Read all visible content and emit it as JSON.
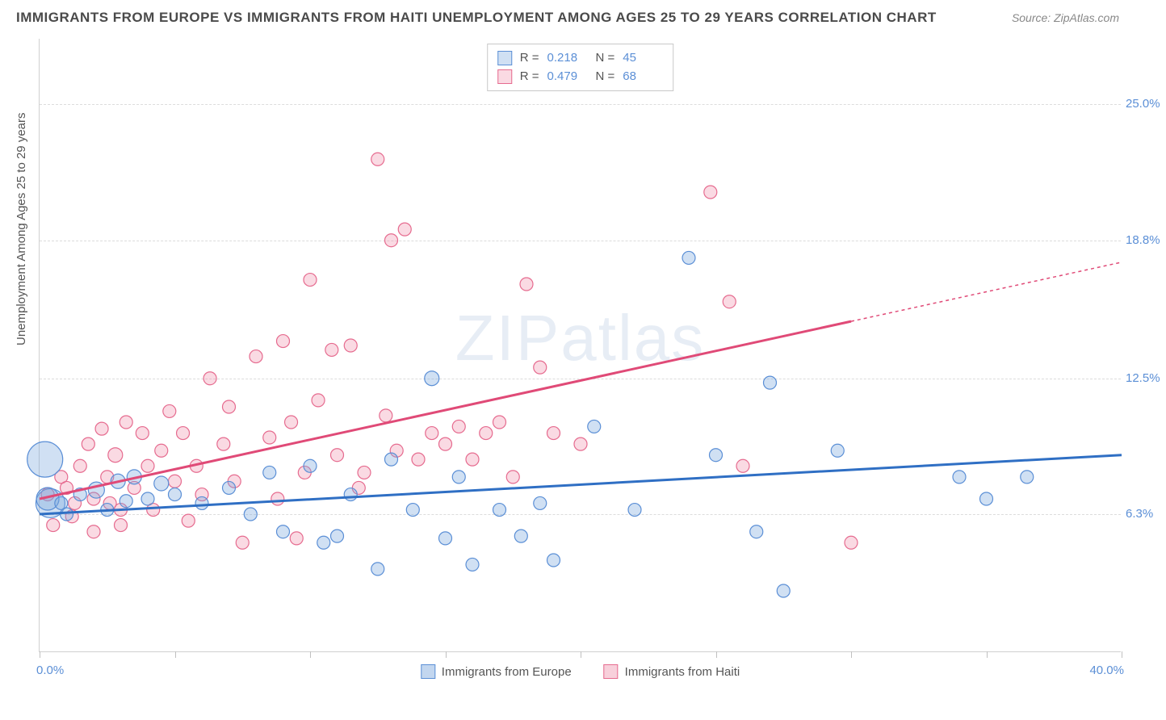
{
  "header": {
    "title": "IMMIGRANTS FROM EUROPE VS IMMIGRANTS FROM HAITI UNEMPLOYMENT AMONG AGES 25 TO 29 YEARS CORRELATION CHART",
    "source": "Source: ZipAtlas.com"
  },
  "chart": {
    "type": "scatter",
    "ylabel": "Unemployment Among Ages 25 to 29 years",
    "xlim": [
      0,
      40
    ],
    "ylim": [
      0,
      28
    ],
    "xtick_positions": [
      0,
      5,
      10,
      15,
      20,
      25,
      30,
      35,
      40
    ],
    "x_axis_min_label": "0.0%",
    "x_axis_max_label": "40.0%",
    "ytick_labels": [
      "6.3%",
      "12.5%",
      "18.8%",
      "25.0%"
    ],
    "ytick_values": [
      6.3,
      12.5,
      18.8,
      25.0
    ],
    "grid_color": "#dcdcdc",
    "background_color": "#ffffff",
    "axis_color": "#d0d0d0",
    "label_fontsize": 15,
    "tick_color": "#5b8fd6",
    "watermark": "ZIPatlas",
    "series": [
      {
        "name": "Immigrants from Europe",
        "color_fill": "rgba(120,165,220,0.35)",
        "color_stroke": "#5b8fd6",
        "trend_color": "#2f6fc4",
        "trend_width": 3,
        "R": "0.218",
        "N": "45",
        "trend_start": {
          "x": 0,
          "y": 6.3
        },
        "trend_end": {
          "x": 40,
          "y": 9.0
        },
        "points": [
          {
            "x": 0.2,
            "y": 8.8,
            "r": 22
          },
          {
            "x": 0.4,
            "y": 6.8,
            "r": 18
          },
          {
            "x": 0.3,
            "y": 7.0,
            "r": 14
          },
          {
            "x": 0.8,
            "y": 6.8,
            "r": 8
          },
          {
            "x": 1.0,
            "y": 6.3,
            "r": 8
          },
          {
            "x": 1.5,
            "y": 7.2,
            "r": 8
          },
          {
            "x": 2.1,
            "y": 7.4,
            "r": 10
          },
          {
            "x": 2.5,
            "y": 6.5,
            "r": 8
          },
          {
            "x": 2.9,
            "y": 7.8,
            "r": 9
          },
          {
            "x": 3.2,
            "y": 6.9,
            "r": 8
          },
          {
            "x": 3.5,
            "y": 8.0,
            "r": 9
          },
          {
            "x": 4.0,
            "y": 7.0,
            "r": 8
          },
          {
            "x": 4.5,
            "y": 7.7,
            "r": 9
          },
          {
            "x": 5.0,
            "y": 7.2,
            "r": 8
          },
          {
            "x": 6.0,
            "y": 6.8,
            "r": 8
          },
          {
            "x": 7.0,
            "y": 7.5,
            "r": 8
          },
          {
            "x": 7.8,
            "y": 6.3,
            "r": 8
          },
          {
            "x": 8.5,
            "y": 8.2,
            "r": 8
          },
          {
            "x": 9.0,
            "y": 5.5,
            "r": 8
          },
          {
            "x": 10.0,
            "y": 8.5,
            "r": 8
          },
          {
            "x": 10.5,
            "y": 5.0,
            "r": 8
          },
          {
            "x": 11.0,
            "y": 5.3,
            "r": 8
          },
          {
            "x": 11.5,
            "y": 7.2,
            "r": 8
          },
          {
            "x": 12.5,
            "y": 3.8,
            "r": 8
          },
          {
            "x": 13.0,
            "y": 8.8,
            "r": 8
          },
          {
            "x": 13.8,
            "y": 6.5,
            "r": 8
          },
          {
            "x": 14.5,
            "y": 12.5,
            "r": 9
          },
          {
            "x": 15.0,
            "y": 5.2,
            "r": 8
          },
          {
            "x": 15.5,
            "y": 8.0,
            "r": 8
          },
          {
            "x": 16.0,
            "y": 4.0,
            "r": 8
          },
          {
            "x": 17.0,
            "y": 6.5,
            "r": 8
          },
          {
            "x": 17.8,
            "y": 5.3,
            "r": 8
          },
          {
            "x": 19.0,
            "y": 4.2,
            "r": 8
          },
          {
            "x": 20.5,
            "y": 10.3,
            "r": 8
          },
          {
            "x": 22.0,
            "y": 6.5,
            "r": 8
          },
          {
            "x": 24.0,
            "y": 18.0,
            "r": 8
          },
          {
            "x": 25.0,
            "y": 9.0,
            "r": 8
          },
          {
            "x": 26.5,
            "y": 5.5,
            "r": 8
          },
          {
            "x": 27.0,
            "y": 12.3,
            "r": 8
          },
          {
            "x": 27.5,
            "y": 2.8,
            "r": 8
          },
          {
            "x": 29.5,
            "y": 9.2,
            "r": 8
          },
          {
            "x": 34.0,
            "y": 8.0,
            "r": 8
          },
          {
            "x": 35.0,
            "y": 7.0,
            "r": 8
          },
          {
            "x": 36.5,
            "y": 8.0,
            "r": 8
          },
          {
            "x": 18.5,
            "y": 6.8,
            "r": 8
          }
        ]
      },
      {
        "name": "Immigrants from Haiti",
        "color_fill": "rgba(240,150,175,0.35)",
        "color_stroke": "#e66b8f",
        "trend_color": "#e04a77",
        "trend_width": 3,
        "R": "0.479",
        "N": "68",
        "trend_start": {
          "x": 0,
          "y": 7.0
        },
        "trend_end": {
          "x": 40,
          "y": 17.8
        },
        "trend_dash_from_x": 30,
        "points": [
          {
            "x": 0.3,
            "y": 7.2,
            "r": 8
          },
          {
            "x": 0.8,
            "y": 8.0,
            "r": 8
          },
          {
            "x": 1.0,
            "y": 7.5,
            "r": 8
          },
          {
            "x": 1.3,
            "y": 6.8,
            "r": 8
          },
          {
            "x": 1.5,
            "y": 8.5,
            "r": 8
          },
          {
            "x": 1.8,
            "y": 9.5,
            "r": 8
          },
          {
            "x": 2.0,
            "y": 7.0,
            "r": 8
          },
          {
            "x": 2.3,
            "y": 10.2,
            "r": 8
          },
          {
            "x": 2.5,
            "y": 8.0,
            "r": 8
          },
          {
            "x": 2.8,
            "y": 9.0,
            "r": 9
          },
          {
            "x": 3.0,
            "y": 6.5,
            "r": 8
          },
          {
            "x": 3.2,
            "y": 10.5,
            "r": 8
          },
          {
            "x": 3.5,
            "y": 7.5,
            "r": 8
          },
          {
            "x": 3.8,
            "y": 10.0,
            "r": 8
          },
          {
            "x": 4.0,
            "y": 8.5,
            "r": 8
          },
          {
            "x": 4.5,
            "y": 9.2,
            "r": 8
          },
          {
            "x": 4.8,
            "y": 11.0,
            "r": 8
          },
          {
            "x": 5.0,
            "y": 7.8,
            "r": 8
          },
          {
            "x": 5.3,
            "y": 10.0,
            "r": 8
          },
          {
            "x": 5.8,
            "y": 8.5,
            "r": 8
          },
          {
            "x": 6.3,
            "y": 12.5,
            "r": 8
          },
          {
            "x": 6.8,
            "y": 9.5,
            "r": 8
          },
          {
            "x": 7.0,
            "y": 11.2,
            "r": 8
          },
          {
            "x": 7.5,
            "y": 5.0,
            "r": 8
          },
          {
            "x": 8.0,
            "y": 13.5,
            "r": 8
          },
          {
            "x": 8.5,
            "y": 9.8,
            "r": 8
          },
          {
            "x": 9.0,
            "y": 14.2,
            "r": 8
          },
          {
            "x": 9.3,
            "y": 10.5,
            "r": 8
          },
          {
            "x": 9.5,
            "y": 5.2,
            "r": 8
          },
          {
            "x": 10.0,
            "y": 17.0,
            "r": 8
          },
          {
            "x": 10.3,
            "y": 11.5,
            "r": 8
          },
          {
            "x": 10.8,
            "y": 13.8,
            "r": 8
          },
          {
            "x": 11.0,
            "y": 9.0,
            "r": 8
          },
          {
            "x": 11.5,
            "y": 14.0,
            "r": 8
          },
          {
            "x": 12.0,
            "y": 8.2,
            "r": 8
          },
          {
            "x": 12.5,
            "y": 22.5,
            "r": 8
          },
          {
            "x": 13.0,
            "y": 18.8,
            "r": 8
          },
          {
            "x": 13.5,
            "y": 19.3,
            "r": 8
          },
          {
            "x": 14.0,
            "y": 8.8,
            "r": 8
          },
          {
            "x": 14.5,
            "y": 10.0,
            "r": 8
          },
          {
            "x": 15.0,
            "y": 9.5,
            "r": 8
          },
          {
            "x": 15.5,
            "y": 10.3,
            "r": 8
          },
          {
            "x": 16.0,
            "y": 8.8,
            "r": 8
          },
          {
            "x": 16.5,
            "y": 10.0,
            "r": 8
          },
          {
            "x": 17.0,
            "y": 10.5,
            "r": 8
          },
          {
            "x": 18.0,
            "y": 16.8,
            "r": 8
          },
          {
            "x": 18.5,
            "y": 13.0,
            "r": 8
          },
          {
            "x": 19.0,
            "y": 10.0,
            "r": 8
          },
          {
            "x": 20.0,
            "y": 9.5,
            "r": 8
          },
          {
            "x": 24.8,
            "y": 21.0,
            "r": 8
          },
          {
            "x": 25.5,
            "y": 16.0,
            "r": 8
          },
          {
            "x": 26.0,
            "y": 8.5,
            "r": 8
          },
          {
            "x": 30.0,
            "y": 5.0,
            "r": 8
          },
          {
            "x": 2.0,
            "y": 5.5,
            "r": 8
          },
          {
            "x": 3.0,
            "y": 5.8,
            "r": 8
          },
          {
            "x": 5.5,
            "y": 6.0,
            "r": 8
          },
          {
            "x": 7.2,
            "y": 7.8,
            "r": 8
          },
          {
            "x": 8.8,
            "y": 7.0,
            "r": 8
          },
          {
            "x": 11.8,
            "y": 7.5,
            "r": 8
          },
          {
            "x": 13.2,
            "y": 9.2,
            "r": 8
          },
          {
            "x": 4.2,
            "y": 6.5,
            "r": 8
          },
          {
            "x": 6.0,
            "y": 7.2,
            "r": 8
          },
          {
            "x": 1.2,
            "y": 6.2,
            "r": 8
          },
          {
            "x": 2.6,
            "y": 6.8,
            "r": 8
          },
          {
            "x": 0.5,
            "y": 5.8,
            "r": 8
          },
          {
            "x": 17.5,
            "y": 8.0,
            "r": 8
          },
          {
            "x": 12.8,
            "y": 10.8,
            "r": 8
          },
          {
            "x": 9.8,
            "y": 8.2,
            "r": 8
          }
        ]
      }
    ]
  },
  "legend_bottom": [
    {
      "label": "Immigrants from Europe",
      "fill": "rgba(120,165,220,0.45)",
      "stroke": "#5b8fd6"
    },
    {
      "label": "Immigrants from Haiti",
      "fill": "rgba(240,150,175,0.45)",
      "stroke": "#e66b8f"
    }
  ]
}
